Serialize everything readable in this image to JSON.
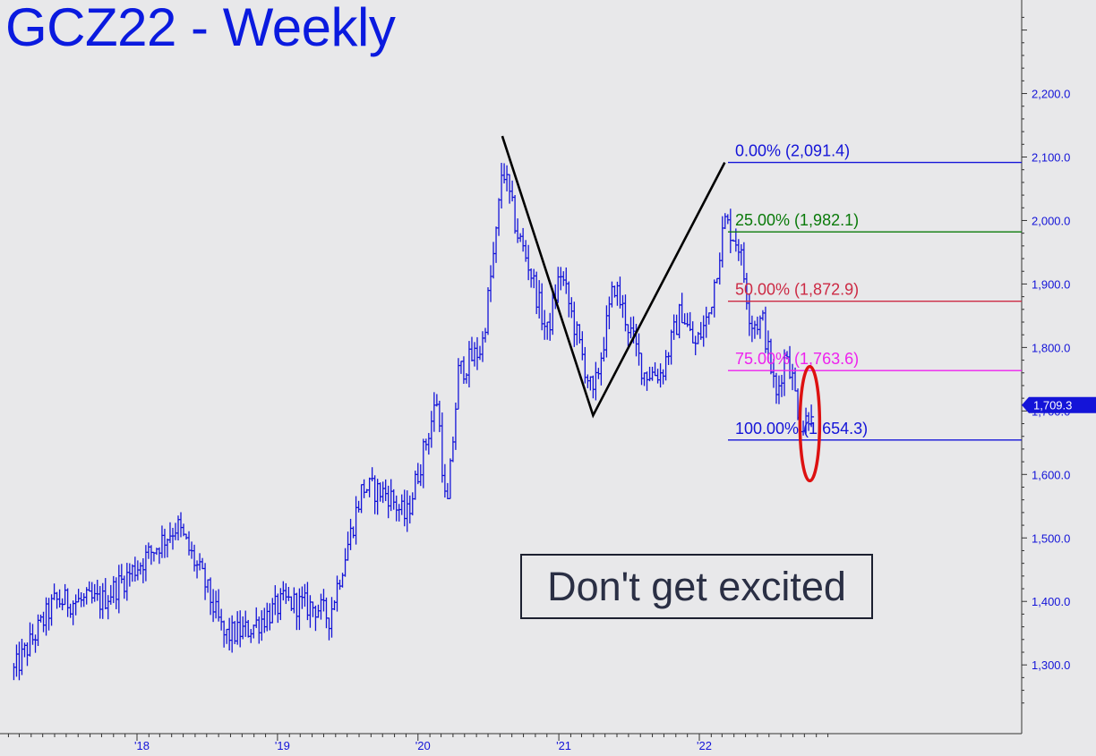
{
  "title": "GCZ22 - Weekly",
  "annotation_text": "Don't get excited",
  "colors": {
    "background": "#e8e8ea",
    "price_bars": "#1414d8",
    "title": "#0a1adf",
    "fib_0": "#1414d8",
    "fib_25": "#0a7a0a",
    "fib_50": "#cc2a44",
    "fib_75": "#ee22ee",
    "fib_100": "#1414d8",
    "abc_lines": "#000000",
    "ellipse": "#dd1111"
  },
  "chart_data": {
    "type": "ohlc",
    "title": "GCZ22 - Weekly",
    "x_axis": {
      "tick_labels": [
        "'18",
        "'19",
        "'20",
        "'21",
        "'22"
      ],
      "range": [
        "2017-02",
        "2022-12"
      ]
    },
    "y_axis": {
      "position": "right",
      "ylim": [
        1230,
        2330
      ],
      "tick_labels": [
        "1,300.0",
        "1,400.0",
        "1,500.0",
        "1,600.0",
        "1,700.0",
        "1,800.0",
        "1,900.0",
        "2,000.0",
        "2,100.0",
        "2,200.0"
      ],
      "ticks": [
        1300,
        1400,
        1500,
        1600,
        1700,
        1800,
        1900,
        2000,
        2100,
        2200
      ]
    },
    "last_price_label": "1,709.3",
    "last_price": 1709.3,
    "fib_levels": [
      {
        "label": "0.00% (2,091.4)",
        "value": 2091.4,
        "color_key": "fib_0"
      },
      {
        "label": "25.00% (1,982.1)",
        "value": 1982.1,
        "color_key": "fib_25"
      },
      {
        "label": "50.00% (1,872.9)",
        "value": 1872.9,
        "color_key": "fib_50"
      },
      {
        "label": "75.00% (1,763.6)",
        "value": 1763.6,
        "color_key": "fib_75"
      },
      {
        "label": "100.00% (1,654.3)",
        "value": 1654.3,
        "color_key": "fib_100"
      }
    ],
    "abc_pattern": [
      {
        "date": "2020-08-07",
        "value": 2133
      },
      {
        "date": "2021-03-31",
        "value": 1693
      },
      {
        "date": "2022-03-08",
        "value": 2091.4
      }
    ],
    "key_points": [
      {
        "date": "2017-02-15",
        "value": 1290
      },
      {
        "date": "2017-06-01",
        "value": 1400
      },
      {
        "date": "2017-10-01",
        "value": 1400
      },
      {
        "date": "2018-01-25",
        "value": 1470
      },
      {
        "date": "2018-04-15",
        "value": 1520
      },
      {
        "date": "2018-06-25",
        "value": 1430
      },
      {
        "date": "2018-08-15",
        "value": 1345
      },
      {
        "date": "2018-10-15",
        "value": 1355
      },
      {
        "date": "2019-01-20",
        "value": 1400
      },
      {
        "date": "2019-04-15",
        "value": 1390
      },
      {
        "date": "2019-05-15",
        "value": 1375
      },
      {
        "date": "2019-08-10",
        "value": 1580
      },
      {
        "date": "2019-10-15",
        "value": 1570
      },
      {
        "date": "2019-12-01",
        "value": 1530
      },
      {
        "date": "2020-02-20",
        "value": 1720
      },
      {
        "date": "2020-03-15",
        "value": 1530
      },
      {
        "date": "2020-04-15",
        "value": 1760
      },
      {
        "date": "2020-06-15",
        "value": 1800
      },
      {
        "date": "2020-07-25",
        "value": 1990
      },
      {
        "date": "2020-08-07",
        "value": 2090
      },
      {
        "date": "2020-09-15",
        "value": 1980
      },
      {
        "date": "2020-10-15",
        "value": 1930
      },
      {
        "date": "2020-12-01",
        "value": 1820
      },
      {
        "date": "2021-01-05",
        "value": 1920
      },
      {
        "date": "2021-03-31",
        "value": 1720
      },
      {
        "date": "2021-05-25",
        "value": 1900
      },
      {
        "date": "2021-08-10",
        "value": 1760
      },
      {
        "date": "2021-09-25",
        "value": 1760
      },
      {
        "date": "2021-11-15",
        "value": 1860
      },
      {
        "date": "2021-12-20",
        "value": 1800
      },
      {
        "date": "2022-01-25",
        "value": 1850
      },
      {
        "date": "2022-03-08",
        "value": 2000
      },
      {
        "date": "2022-04-15",
        "value": 1960
      },
      {
        "date": "2022-05-15",
        "value": 1840
      },
      {
        "date": "2022-06-15",
        "value": 1840
      },
      {
        "date": "2022-07-20",
        "value": 1720
      },
      {
        "date": "2022-08-15",
        "value": 1800
      },
      {
        "date": "2022-09-25",
        "value": 1670
      },
      {
        "date": "2022-10-20",
        "value": 1709.3
      }
    ],
    "highlight_ellipse": {
      "date": "2022-10-15",
      "value_range": [
        1590,
        1770
      ]
    }
  }
}
